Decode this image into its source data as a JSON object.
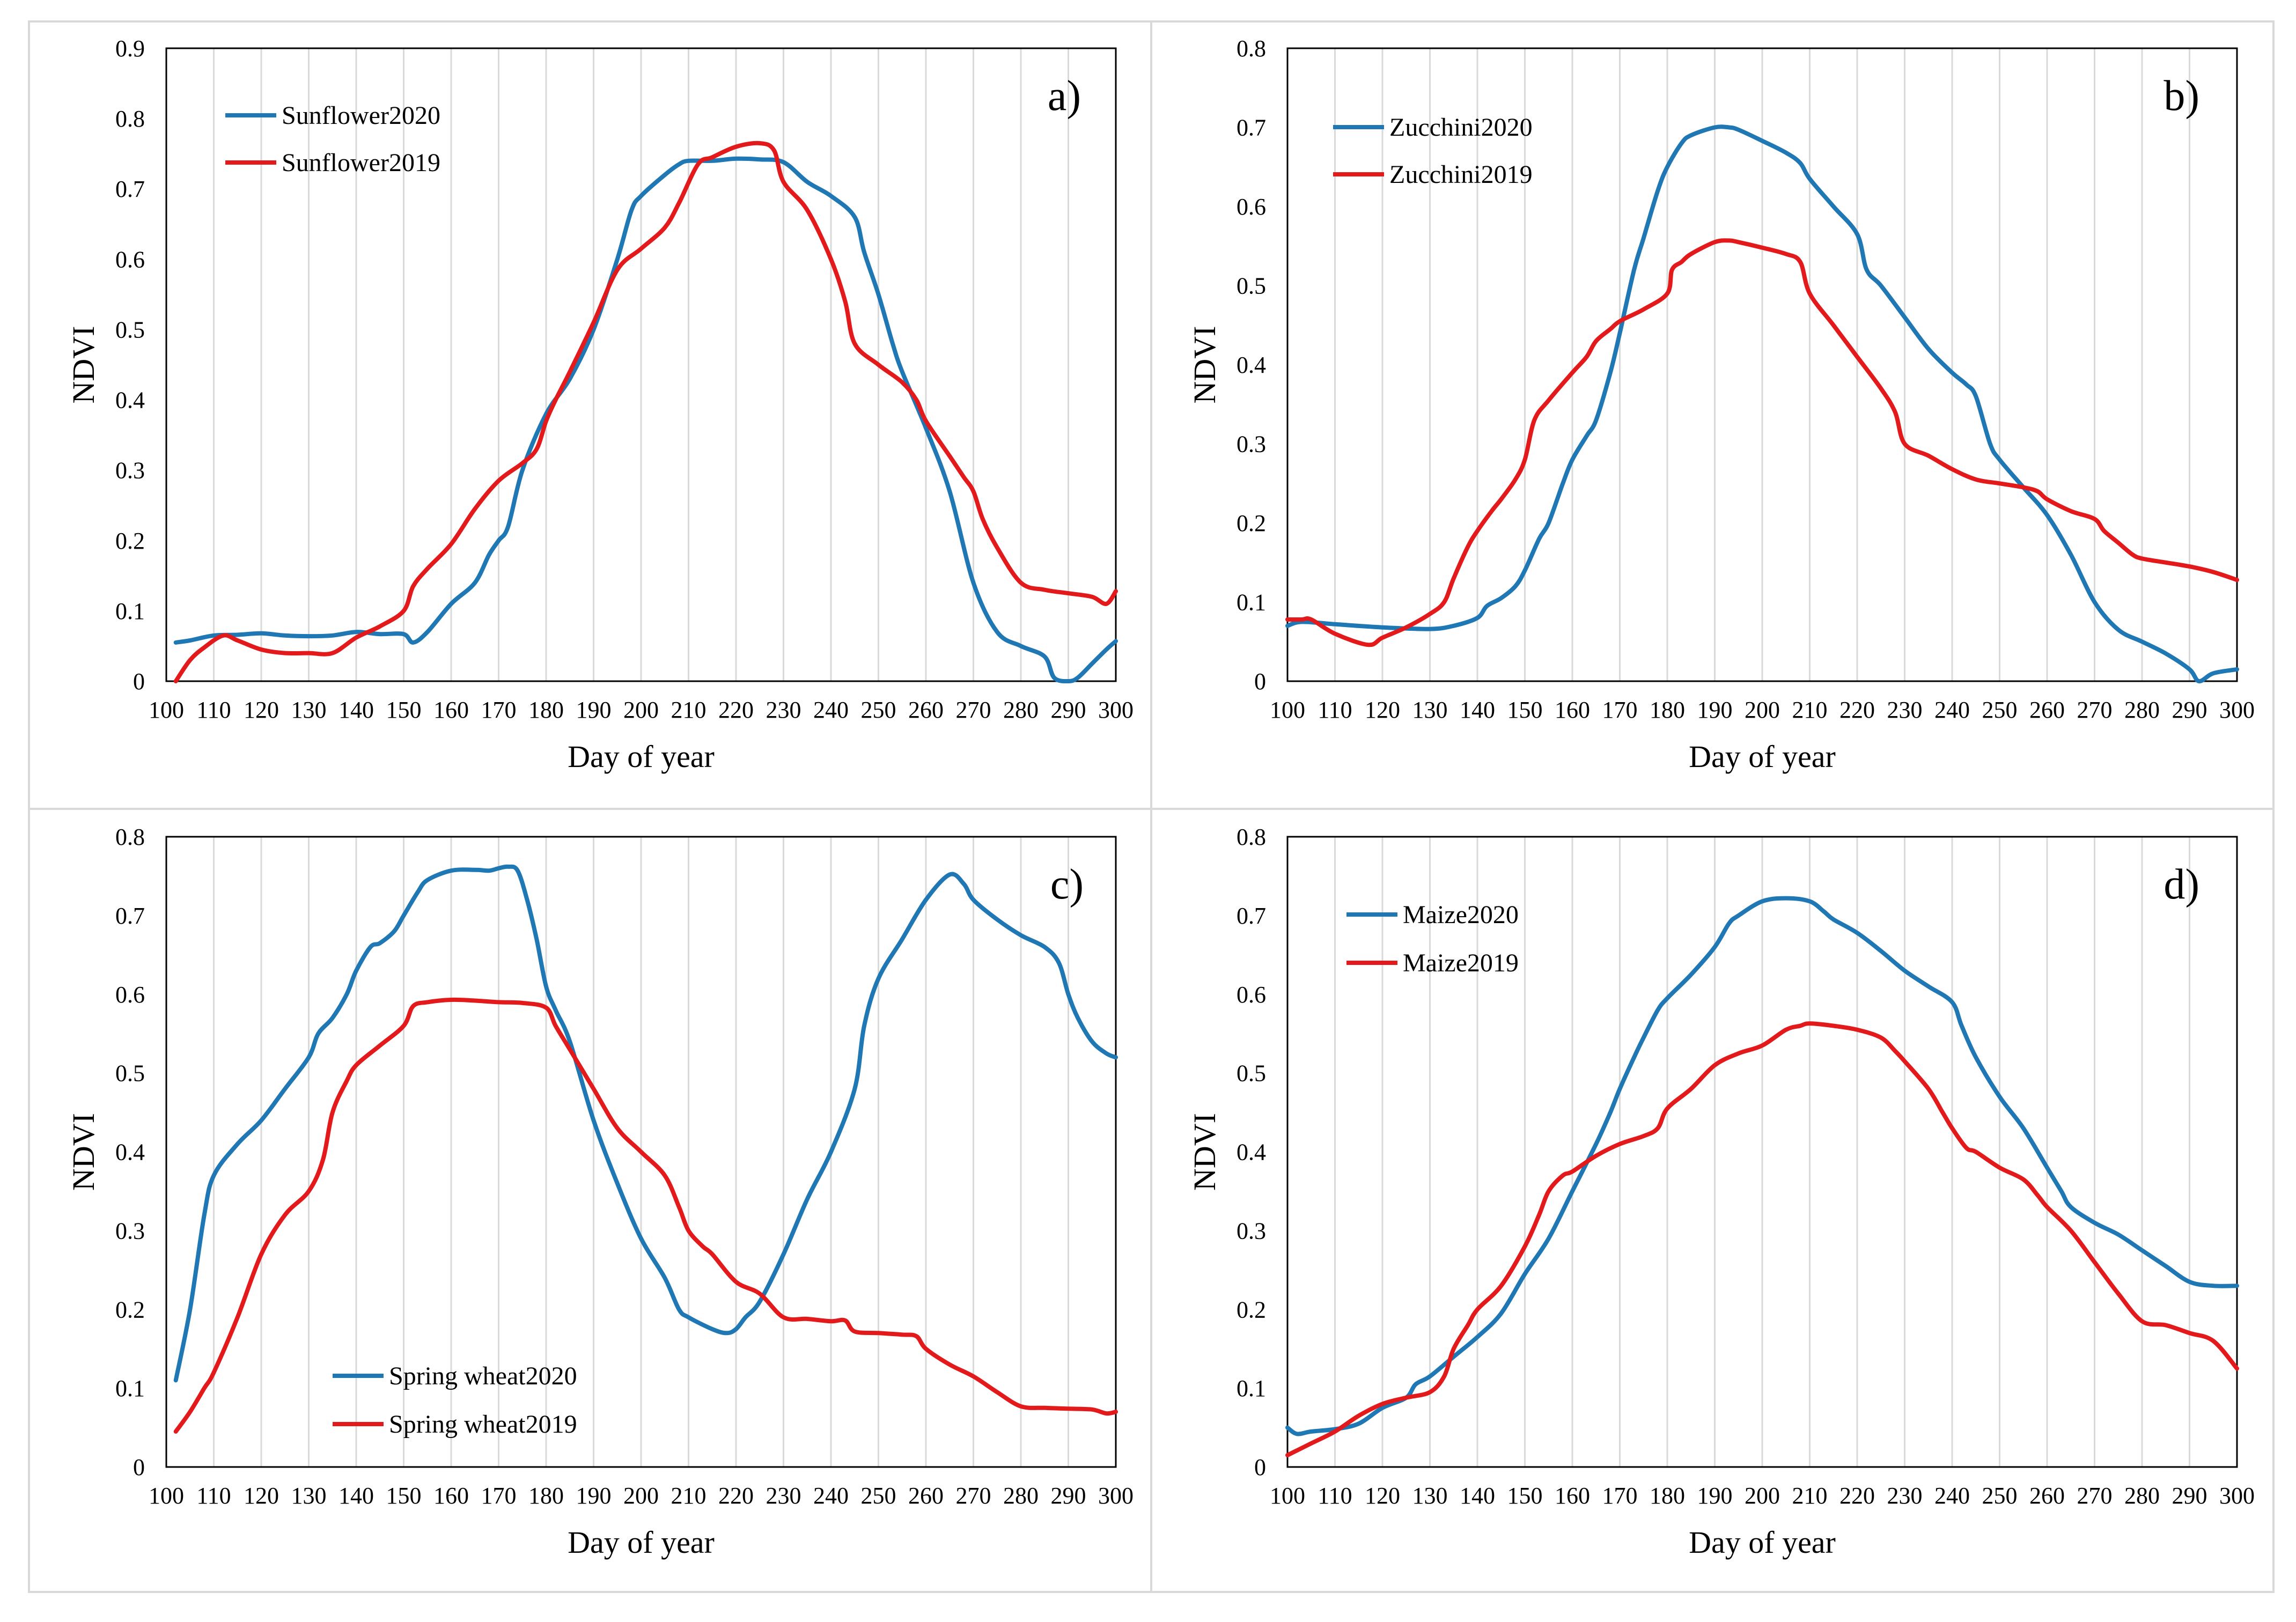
{
  "colors": {
    "series2020": "#1f77b4",
    "series2019": "#e31a1c",
    "grid": "#d9d9d9",
    "axis": "#000000"
  },
  "chart_data": [
    {
      "type": "line",
      "panel_label": "a)",
      "xlabel": "Day of year",
      "ylabel": "NDVI",
      "xlim": [
        100,
        300
      ],
      "ylim": [
        0,
        0.9
      ],
      "xticks": [
        "100",
        "110",
        "120",
        "130",
        "140",
        "150",
        "160",
        "170",
        "180",
        "190",
        "200",
        "210",
        "220",
        "230",
        "240",
        "250",
        "260",
        "270",
        "280",
        "290",
        "300"
      ],
      "yticks": [
        "0",
        "0.1",
        "0.2",
        "0.3",
        "0.4",
        "0.5",
        "0.6",
        "0.7",
        "0.8",
        "0.9"
      ],
      "legend_position": "top-left",
      "series": [
        {
          "name": "Sunflower2020",
          "color": "#1f77b4",
          "x": [
            102,
            105,
            110,
            115,
            120,
            125,
            130,
            135,
            140,
            145,
            150,
            152,
            155,
            160,
            165,
            168,
            170,
            172,
            175,
            180,
            185,
            190,
            195,
            198,
            200,
            205,
            208,
            210,
            215,
            220,
            225,
            230,
            235,
            240,
            245,
            247,
            250,
            253,
            255,
            260,
            265,
            270,
            275,
            280,
            285,
            287,
            290,
            292,
            295,
            298,
            300
          ],
          "y": [
            0.055,
            0.058,
            0.065,
            0.066,
            0.068,
            0.065,
            0.064,
            0.065,
            0.07,
            0.067,
            0.067,
            0.055,
            0.07,
            0.11,
            0.14,
            0.18,
            0.2,
            0.22,
            0.3,
            0.38,
            0.43,
            0.5,
            0.6,
            0.67,
            0.69,
            0.72,
            0.735,
            0.74,
            0.74,
            0.743,
            0.742,
            0.738,
            0.71,
            0.69,
            0.66,
            0.61,
            0.55,
            0.48,
            0.44,
            0.36,
            0.27,
            0.14,
            0.07,
            0.05,
            0.035,
            0.005,
            0.0,
            0.005,
            0.025,
            0.045,
            0.057
          ]
        },
        {
          "name": "Sunflower2019",
          "color": "#e31a1c",
          "x": [
            102,
            105,
            108,
            112,
            115,
            120,
            125,
            130,
            135,
            140,
            145,
            150,
            152,
            155,
            160,
            165,
            170,
            175,
            178,
            180,
            182,
            185,
            190,
            195,
            200,
            205,
            208,
            212,
            215,
            220,
            225,
            228,
            230,
            235,
            240,
            243,
            245,
            250,
            255,
            258,
            260,
            265,
            268,
            270,
            272,
            275,
            280,
            285,
            290,
            295,
            298,
            300
          ],
          "y": [
            0.0,
            0.03,
            0.048,
            0.065,
            0.058,
            0.045,
            0.04,
            0.04,
            0.04,
            0.062,
            0.078,
            0.1,
            0.135,
            0.16,
            0.195,
            0.245,
            0.285,
            0.31,
            0.33,
            0.37,
            0.4,
            0.44,
            0.51,
            0.585,
            0.615,
            0.645,
            0.68,
            0.735,
            0.745,
            0.76,
            0.765,
            0.755,
            0.71,
            0.67,
            0.6,
            0.54,
            0.48,
            0.45,
            0.425,
            0.4,
            0.37,
            0.32,
            0.29,
            0.27,
            0.23,
            0.19,
            0.14,
            0.13,
            0.125,
            0.12,
            0.11,
            0.128
          ]
        }
      ]
    },
    {
      "type": "line",
      "panel_label": "b)",
      "xlabel": "Day of year",
      "ylabel": "NDVI",
      "xlim": [
        100,
        300
      ],
      "ylim": [
        0,
        0.8
      ],
      "xticks": [
        "100",
        "110",
        "120",
        "130",
        "140",
        "150",
        "160",
        "170",
        "180",
        "190",
        "200",
        "210",
        "220",
        "230",
        "240",
        "250",
        "260",
        "270",
        "280",
        "290",
        "300"
      ],
      "yticks": [
        "0",
        "0.1",
        "0.2",
        "0.3",
        "0.4",
        "0.5",
        "0.6",
        "0.7",
        "0.8"
      ],
      "legend_position": "top-left",
      "series": [
        {
          "name": "Zucchini2020",
          "color": "#1f77b4",
          "x": [
            100,
            103,
            110,
            120,
            130,
            135,
            140,
            142,
            145,
            148,
            150,
            153,
            155,
            158,
            160,
            163,
            165,
            168,
            170,
            173,
            175,
            178,
            180,
            183,
            185,
            190,
            193,
            195,
            200,
            205,
            208,
            210,
            215,
            220,
            222,
            225,
            230,
            235,
            240,
            243,
            245,
            248,
            250,
            255,
            260,
            265,
            270,
            275,
            280,
            285,
            290,
            292,
            295,
            300
          ],
          "y": [
            0.07,
            0.075,
            0.072,
            0.068,
            0.066,
            0.07,
            0.08,
            0.095,
            0.105,
            0.12,
            0.14,
            0.18,
            0.2,
            0.25,
            0.28,
            0.31,
            0.33,
            0.39,
            0.44,
            0.52,
            0.56,
            0.62,
            0.65,
            0.68,
            0.69,
            0.7,
            0.7,
            0.697,
            0.683,
            0.668,
            0.655,
            0.635,
            0.6,
            0.565,
            0.52,
            0.5,
            0.46,
            0.42,
            0.39,
            0.375,
            0.36,
            0.3,
            0.28,
            0.245,
            0.21,
            0.16,
            0.1,
            0.065,
            0.05,
            0.035,
            0.015,
            0.0,
            0.01,
            0.015
          ]
        },
        {
          "name": "Zucchini2019",
          "color": "#e31a1c",
          "x": [
            100,
            103,
            105,
            110,
            117,
            120,
            125,
            130,
            133,
            135,
            138,
            140,
            143,
            145,
            148,
            150,
            152,
            155,
            160,
            163,
            165,
            168,
            170,
            175,
            180,
            181,
            183,
            185,
            190,
            193,
            195,
            200,
            205,
            208,
            210,
            215,
            220,
            225,
            228,
            230,
            235,
            240,
            245,
            250,
            255,
            258,
            260,
            265,
            270,
            272,
            275,
            278,
            280,
            285,
            290,
            295,
            300
          ],
          "y": [
            0.078,
            0.078,
            0.078,
            0.06,
            0.046,
            0.055,
            0.068,
            0.085,
            0.1,
            0.13,
            0.17,
            0.19,
            0.215,
            0.23,
            0.255,
            0.28,
            0.33,
            0.355,
            0.39,
            0.41,
            0.43,
            0.445,
            0.455,
            0.47,
            0.49,
            0.52,
            0.53,
            0.54,
            0.555,
            0.557,
            0.555,
            0.548,
            0.54,
            0.53,
            0.49,
            0.45,
            0.41,
            0.37,
            0.34,
            0.3,
            0.285,
            0.268,
            0.255,
            0.25,
            0.245,
            0.24,
            0.23,
            0.215,
            0.205,
            0.19,
            0.175,
            0.16,
            0.155,
            0.15,
            0.145,
            0.138,
            0.128
          ]
        }
      ]
    },
    {
      "type": "line",
      "panel_label": "c)",
      "xlabel": "Day of year",
      "ylabel": "NDVI",
      "xlim": [
        100,
        300
      ],
      "ylim": [
        0,
        0.8
      ],
      "xticks": [
        "100",
        "110",
        "120",
        "130",
        "140",
        "150",
        "160",
        "170",
        "180",
        "190",
        "200",
        "210",
        "220",
        "230",
        "240",
        "250",
        "260",
        "270",
        "280",
        "290",
        "300"
      ],
      "yticks": [
        "0",
        "0.1",
        "0.2",
        "0.3",
        "0.4",
        "0.5",
        "0.6",
        "0.7",
        "0.8"
      ],
      "legend_position": "bottom-left",
      "series": [
        {
          "name": "Spring wheat2020",
          "color": "#1f77b4",
          "x": [
            102,
            105,
            108,
            110,
            115,
            120,
            125,
            130,
            132,
            135,
            138,
            140,
            143,
            145,
            148,
            150,
            153,
            155,
            160,
            165,
            168,
            170,
            172,
            174,
            176,
            178,
            180,
            182,
            185,
            190,
            195,
            200,
            205,
            208,
            210,
            215,
            218,
            220,
            222,
            225,
            230,
            235,
            240,
            245,
            247,
            250,
            255,
            260,
            265,
            268,
            270,
            275,
            280,
            285,
            288,
            290,
            292,
            295,
            298,
            300
          ],
          "y": [
            0.11,
            0.2,
            0.32,
            0.37,
            0.41,
            0.44,
            0.48,
            0.52,
            0.55,
            0.57,
            0.6,
            0.63,
            0.66,
            0.665,
            0.68,
            0.7,
            0.73,
            0.745,
            0.757,
            0.758,
            0.757,
            0.76,
            0.762,
            0.757,
            0.72,
            0.67,
            0.61,
            0.58,
            0.54,
            0.44,
            0.36,
            0.29,
            0.24,
            0.2,
            0.19,
            0.175,
            0.17,
            0.175,
            0.19,
            0.21,
            0.27,
            0.34,
            0.4,
            0.48,
            0.56,
            0.62,
            0.67,
            0.72,
            0.752,
            0.74,
            0.72,
            0.695,
            0.675,
            0.66,
            0.64,
            0.6,
            0.57,
            0.54,
            0.525,
            0.52
          ]
        },
        {
          "name": "Spring wheat2019",
          "color": "#e31a1c",
          "x": [
            102,
            105,
            108,
            110,
            115,
            120,
            125,
            130,
            133,
            135,
            138,
            140,
            145,
            150,
            152,
            155,
            160,
            165,
            170,
            175,
            180,
            182,
            185,
            190,
            195,
            200,
            205,
            208,
            210,
            213,
            215,
            220,
            225,
            230,
            235,
            240,
            243,
            245,
            250,
            255,
            258,
            260,
            265,
            270,
            275,
            280,
            285,
            290,
            295,
            298,
            300
          ],
          "y": [
            0.045,
            0.07,
            0.1,
            0.12,
            0.19,
            0.27,
            0.32,
            0.35,
            0.39,
            0.45,
            0.49,
            0.51,
            0.535,
            0.56,
            0.585,
            0.59,
            0.593,
            0.592,
            0.59,
            0.589,
            0.583,
            0.56,
            0.53,
            0.48,
            0.43,
            0.4,
            0.37,
            0.33,
            0.3,
            0.28,
            0.27,
            0.235,
            0.22,
            0.19,
            0.188,
            0.185,
            0.186,
            0.172,
            0.17,
            0.168,
            0.166,
            0.15,
            0.13,
            0.115,
            0.095,
            0.077,
            0.075,
            0.074,
            0.073,
            0.068,
            0.07
          ]
        }
      ]
    },
    {
      "type": "line",
      "panel_label": "d)",
      "xlabel": "Day of year",
      "ylabel": "NDVI",
      "xlim": [
        100,
        300
      ],
      "ylim": [
        0,
        0.8
      ],
      "xticks": [
        "100",
        "110",
        "120",
        "130",
        "140",
        "150",
        "160",
        "170",
        "180",
        "190",
        "200",
        "210",
        "220",
        "230",
        "240",
        "250",
        "260",
        "270",
        "280",
        "290",
        "300"
      ],
      "yticks": [
        "0",
        "0.1",
        "0.2",
        "0.3",
        "0.4",
        "0.5",
        "0.6",
        "0.7",
        "0.8"
      ],
      "legend_position": "top-left",
      "series": [
        {
          "name": "Maize2020",
          "color": "#1f77b4",
          "x": [
            100,
            102,
            105,
            110,
            115,
            120,
            125,
            127,
            130,
            135,
            140,
            145,
            150,
            155,
            160,
            165,
            168,
            170,
            173,
            175,
            178,
            180,
            185,
            190,
            193,
            195,
            200,
            205,
            210,
            213,
            215,
            220,
            225,
            230,
            235,
            240,
            242,
            245,
            250,
            255,
            260,
            263,
            265,
            270,
            275,
            280,
            285,
            290,
            295,
            300
          ],
          "y": [
            0.05,
            0.042,
            0.045,
            0.048,
            0.055,
            0.075,
            0.088,
            0.105,
            0.115,
            0.14,
            0.165,
            0.195,
            0.245,
            0.29,
            0.35,
            0.41,
            0.45,
            0.48,
            0.52,
            0.545,
            0.58,
            0.595,
            0.625,
            0.66,
            0.69,
            0.7,
            0.718,
            0.722,
            0.718,
            0.705,
            0.695,
            0.678,
            0.655,
            0.63,
            0.61,
            0.59,
            0.56,
            0.52,
            0.47,
            0.43,
            0.38,
            0.35,
            0.33,
            0.31,
            0.295,
            0.275,
            0.255,
            0.235,
            0.23,
            0.23
          ]
        },
        {
          "name": "Maize2019",
          "color": "#e31a1c",
          "x": [
            100,
            105,
            110,
            115,
            120,
            125,
            130,
            133,
            135,
            138,
            140,
            145,
            150,
            153,
            155,
            158,
            160,
            165,
            170,
            175,
            178,
            180,
            185,
            190,
            195,
            200,
            205,
            208,
            210,
            215,
            220,
            225,
            228,
            230,
            235,
            238,
            240,
            243,
            245,
            250,
            255,
            258,
            260,
            265,
            270,
            275,
            280,
            285,
            290,
            295,
            300
          ],
          "y": [
            0.015,
            0.03,
            0.045,
            0.065,
            0.08,
            0.088,
            0.095,
            0.115,
            0.15,
            0.18,
            0.2,
            0.23,
            0.28,
            0.32,
            0.35,
            0.37,
            0.375,
            0.395,
            0.41,
            0.42,
            0.43,
            0.455,
            0.48,
            0.51,
            0.525,
            0.535,
            0.555,
            0.56,
            0.563,
            0.56,
            0.555,
            0.545,
            0.528,
            0.515,
            0.48,
            0.45,
            0.43,
            0.405,
            0.4,
            0.38,
            0.365,
            0.345,
            0.33,
            0.3,
            0.26,
            0.22,
            0.185,
            0.18,
            0.17,
            0.16,
            0.125
          ]
        }
      ]
    }
  ]
}
